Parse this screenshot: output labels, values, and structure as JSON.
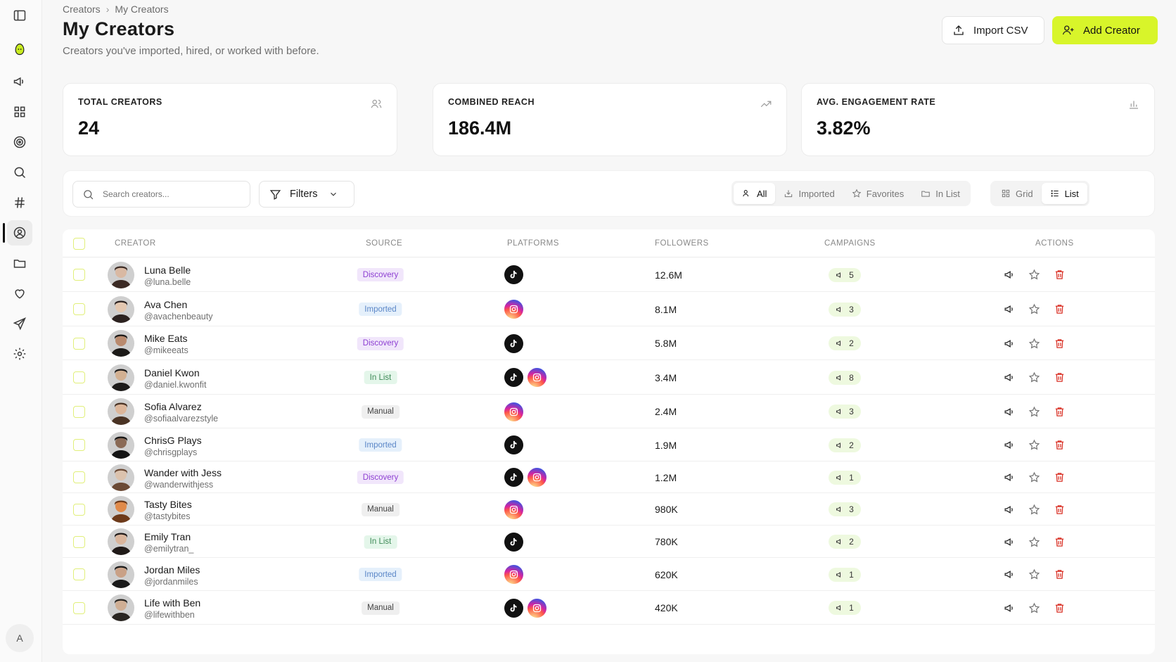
{
  "breadcrumb": {
    "root": "Creators",
    "current": "My Creators"
  },
  "page": {
    "title": "My Creators",
    "subtitle": "Creators you've imported, hired, or worked with before."
  },
  "actions": {
    "import_label": "Import CSV",
    "add_label": "Add Creator"
  },
  "sidebar": {
    "user_initial": "A",
    "items": [
      "panel-toggle-icon",
      "logo-icon",
      "megaphone-icon",
      "grid-icon",
      "target-icon",
      "search-icon",
      "hashtag-icon",
      "user-circle-icon",
      "folder-icon",
      "heart-icon",
      "send-icon",
      "settings-icon"
    ]
  },
  "stats": [
    {
      "label": "TOTAL CREATORS",
      "value": "24",
      "icon": "users-icon"
    },
    {
      "label": "COMBINED REACH",
      "value": "186.4M",
      "icon": "trending-up-icon"
    },
    {
      "label": "AVG. ENGAGEMENT RATE",
      "value": "3.82%",
      "icon": "bar-chart-icon"
    }
  ],
  "toolbar": {
    "search_placeholder": "Search creators...",
    "filters_label": "Filters",
    "tabs": [
      "All",
      "Imported",
      "Favorites",
      "In List"
    ],
    "views": [
      "Grid",
      "List"
    ]
  },
  "table": {
    "headers": {
      "creator": "CREATOR",
      "source": "SOURCE",
      "platforms": "PLATFORMS",
      "followers": "FOLLOWERS",
      "campaigns": "CAMPAIGNS",
      "actions": "ACTIONS"
    },
    "rows": [
      {
        "name": "Luna Belle",
        "handle": "@luna.belle",
        "source": "Discovery",
        "platforms": [
          "tiktok"
        ],
        "followers": "12.6M",
        "campaigns": "5"
      },
      {
        "name": "Ava Chen",
        "handle": "@avachenbeauty",
        "source": "Imported",
        "platforms": [
          "instagram"
        ],
        "followers": "8.1M",
        "campaigns": "3"
      },
      {
        "name": "Mike Eats",
        "handle": "@mikeeats",
        "source": "Discovery",
        "platforms": [
          "tiktok"
        ],
        "followers": "5.8M",
        "campaigns": "2"
      },
      {
        "name": "Daniel Kwon",
        "handle": "@daniel.kwonfit",
        "source": "In List",
        "platforms": [
          "tiktok",
          "instagram"
        ],
        "followers": "3.4M",
        "campaigns": "8"
      },
      {
        "name": "Sofia Alvarez",
        "handle": "@sofiaalvarezstyle",
        "source": "Manual",
        "platforms": [
          "instagram"
        ],
        "followers": "2.4M",
        "campaigns": "3"
      },
      {
        "name": "ChrisG Plays",
        "handle": "@chrisgplays",
        "source": "Imported",
        "platforms": [
          "tiktok"
        ],
        "followers": "1.9M",
        "campaigns": "2"
      },
      {
        "name": "Wander with Jess",
        "handle": "@wanderwithjess",
        "source": "Discovery",
        "platforms": [
          "tiktok",
          "instagram"
        ],
        "followers": "1.2M",
        "campaigns": "1"
      },
      {
        "name": "Tasty Bites",
        "handle": "@tastybites",
        "source": "Manual",
        "platforms": [
          "instagram"
        ],
        "followers": "980K",
        "campaigns": "3"
      },
      {
        "name": "Emily Tran",
        "handle": "@emilytran_",
        "source": "In List",
        "platforms": [
          "tiktok"
        ],
        "followers": "780K",
        "campaigns": "2"
      },
      {
        "name": "Jordan Miles",
        "handle": "@jordanmiles",
        "source": "Imported",
        "platforms": [
          "instagram"
        ],
        "followers": "620K",
        "campaigns": "1"
      },
      {
        "name": "Life with Ben",
        "handle": "@lifewithben",
        "source": "Manual",
        "platforms": [
          "tiktok",
          "instagram"
        ],
        "followers": "420K",
        "campaigns": "1"
      }
    ]
  },
  "colors": {
    "accent": "#d8f52a",
    "delete": "#d93025",
    "discovery": "#8d3fd2",
    "imported": "#5a86c7",
    "inlist": "#3e8a57"
  }
}
